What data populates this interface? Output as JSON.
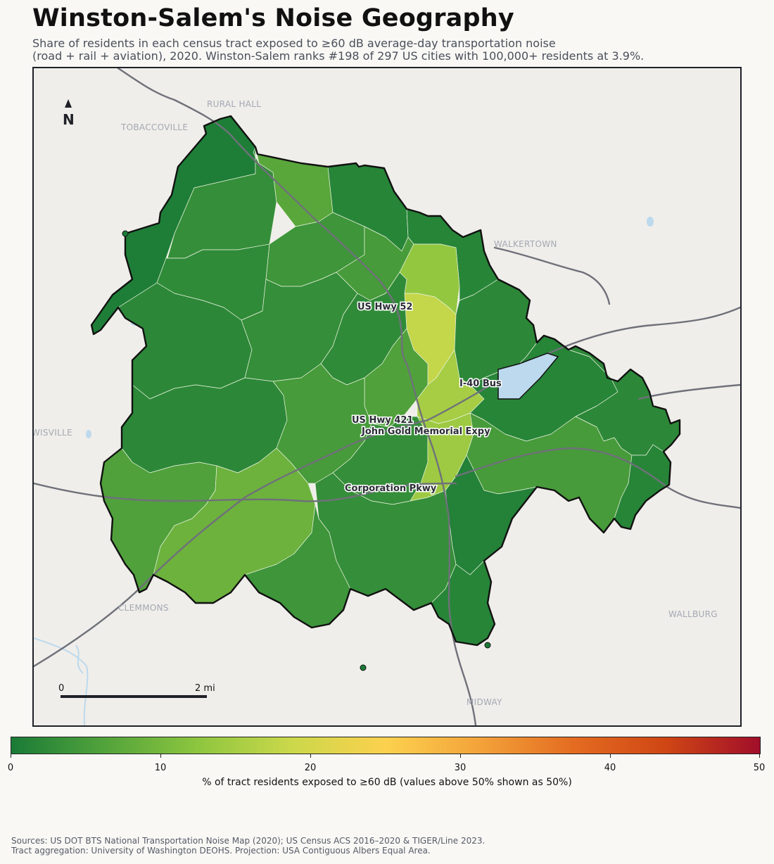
{
  "title": "Winston-Salem's Noise Geography",
  "subtitle": {
    "line1": "Share of residents in each census tract exposed to ≥60 dB average-day transportation noise",
    "line2": "(road + rail + aviation), 2020. Winston-Salem ranks #198 of 297 US cities with 100,000+ residents at 3.9%."
  },
  "map": {
    "north_label": "N",
    "places": [
      {
        "id": "rural-hall",
        "label": "RURAL HALL"
      },
      {
        "id": "tobaccoville",
        "label": "TOBACCOVILLE"
      },
      {
        "id": "walkertown",
        "label": "WALKERTOWN"
      },
      {
        "id": "lewisville",
        "label": "LEWISVILLE"
      },
      {
        "id": "clemmons",
        "label": "CLEMMONS"
      },
      {
        "id": "wallburg",
        "label": "WALLBURG"
      },
      {
        "id": "midway",
        "label": "MIDWAY"
      }
    ],
    "road_labels": [
      {
        "id": "us-hwy-52",
        "label": "US Hwy 52"
      },
      {
        "id": "i-40-bus",
        "label": "I-40 Bus"
      },
      {
        "id": "us-hwy-421",
        "label": "US Hwy 421"
      },
      {
        "id": "john-gold",
        "label": "John Gold Memorial Expy"
      },
      {
        "id": "corporation-pkwy",
        "label": "Corporation Pkwy"
      }
    ],
    "scale_bar": {
      "start_label": "0",
      "end_label": "2 mi"
    },
    "colors": {
      "boundary": "#111111",
      "road": "#6f717a",
      "water": "#bcd9ee",
      "background": "#f0eeea"
    }
  },
  "tracts": [
    {
      "name": "northwest-arm",
      "value": 0.5
    },
    {
      "name": "north-upper-west",
      "value": 3
    },
    {
      "name": "north-upper-center",
      "value": 7
    },
    {
      "name": "north-upper-east",
      "value": 1.5
    },
    {
      "name": "north-east",
      "value": 1.5
    },
    {
      "name": "west-upper",
      "value": 2.5
    },
    {
      "name": "central-north-a",
      "value": 4
    },
    {
      "name": "central-north-b",
      "value": 5
    },
    {
      "name": "corridor-upper",
      "value": 13
    },
    {
      "name": "corridor-yellow",
      "value": 18
    },
    {
      "name": "east-upper",
      "value": 2
    },
    {
      "name": "west-mid",
      "value": 2
    },
    {
      "name": "central-mid-a",
      "value": 3
    },
    {
      "name": "central-mid-b",
      "value": 2.5
    },
    {
      "name": "downtown-a",
      "value": 6
    },
    {
      "name": "downtown-b",
      "value": 15
    },
    {
      "name": "east-mid",
      "value": 1.5
    },
    {
      "name": "far-east",
      "value": 2
    },
    {
      "name": "west-lower",
      "value": 2
    },
    {
      "name": "southwest-a",
      "value": 6
    },
    {
      "name": "southwest-b",
      "value": 9
    },
    {
      "name": "south-central-a",
      "value": 5
    },
    {
      "name": "south-central-b",
      "value": 3
    },
    {
      "name": "corridor-south",
      "value": 14
    },
    {
      "name": "southeast-a",
      "value": 5
    },
    {
      "name": "southeast-b",
      "value": 1
    },
    {
      "name": "southeast-lobe",
      "value": 1.5
    },
    {
      "name": "south-tail-a",
      "value": 3
    },
    {
      "name": "south-tail-b",
      "value": 4
    },
    {
      "name": "far-south",
      "value": 1.5
    }
  ],
  "legend": {
    "min": 0,
    "max": 50,
    "ticks": [
      "0",
      "10",
      "20",
      "30",
      "40",
      "50"
    ],
    "title": "% of tract residents exposed to ≥60 dB (values above 50% shown as 50%)",
    "colors": [
      "#1a7b37",
      "#52a33b",
      "#8ec63f",
      "#cbd84a",
      "#fcd14e",
      "#f3a33a",
      "#e46c21",
      "#cf4614",
      "#a10e2a"
    ]
  },
  "sources": {
    "line1": "Sources: US DOT BTS National Transportation Noise Map (2020); US Census ACS 2016–2020 & TIGER/Line 2023.",
    "line2": "Tract aggregation: University of Washington DEOHS. Projection: USA Contiguous Albers Equal Area."
  }
}
